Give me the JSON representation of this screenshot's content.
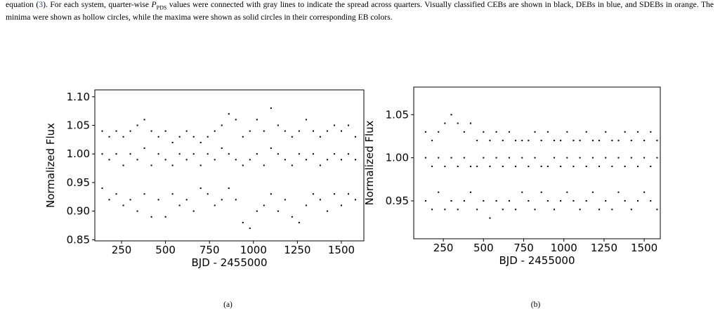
{
  "paragraph": {
    "lead": "equation (",
    "eq_ref": "3",
    "mid": "). For each system, quarter-wise ",
    "symbol": "P",
    "symbol_sub": "PDS",
    "rest": " values were connected with gray lines to indicate the spread across quarters. Visually classified CEBs are shown in black, DEBs in blue, and SDEBs in orange. The minima were shown as hollow circles, while the maxima were shown as solid circles in their corresponding EB colors."
  },
  "chart_data": [
    {
      "type": "scatter",
      "caption": "(a)",
      "xlabel": "BJD - 2455000",
      "ylabel": "Normalized Flux",
      "color": "#000000",
      "x": [
        140,
        180,
        220,
        260,
        300,
        340,
        380,
        420,
        460,
        500,
        540,
        580,
        620,
        660,
        700,
        740,
        780,
        820,
        860,
        900,
        940,
        980,
        1020,
        1060,
        1100,
        1140,
        1180,
        1220,
        1260,
        1300,
        1340,
        1380,
        1420,
        1460,
        1500,
        1540,
        1580,
        140,
        180,
        220,
        260,
        300,
        340,
        380,
        420,
        460,
        500,
        540,
        580,
        620,
        660,
        700,
        740,
        780,
        820,
        860,
        900,
        940,
        980,
        1020,
        1060,
        1100,
        1140,
        1180,
        1220,
        1260,
        1300,
        1340,
        1380,
        1420,
        1460,
        1500,
        1540,
        1580,
        140,
        180,
        220,
        260,
        300,
        340,
        380,
        420,
        460,
        500,
        540,
        580,
        620,
        660,
        700,
        740,
        780,
        820,
        860,
        900,
        940,
        980,
        1020,
        1060,
        1100,
        1140,
        1180,
        1220,
        1260,
        1300,
        1340,
        1380,
        1420,
        1460,
        1500,
        1540,
        1580
      ],
      "values": [
        1.04,
        1.03,
        1.04,
        1.03,
        1.04,
        1.05,
        1.06,
        1.04,
        1.03,
        1.04,
        1.02,
        1.03,
        1.04,
        1.03,
        1.02,
        1.03,
        1.04,
        1.05,
        1.07,
        1.06,
        1.03,
        1.04,
        1.06,
        1.04,
        1.08,
        1.05,
        1.04,
        1.03,
        1.04,
        1.06,
        1.04,
        1.03,
        1.04,
        1.05,
        1.04,
        1.05,
        1.03,
        1.0,
        0.99,
        1.0,
        0.98,
        1.0,
        0.99,
        1.01,
        0.98,
        1.0,
        0.99,
        0.98,
        1.0,
        0.99,
        1.0,
        0.98,
        1.0,
        0.99,
        1.01,
        1.0,
        0.99,
        0.98,
        0.99,
        1.0,
        0.98,
        1.01,
        1.0,
        0.99,
        0.98,
        1.0,
        0.99,
        1.0,
        0.98,
        0.99,
        1.0,
        0.99,
        1.0,
        0.99,
        0.94,
        0.92,
        0.93,
        0.91,
        0.92,
        0.9,
        0.93,
        0.89,
        0.92,
        0.89,
        0.93,
        0.91,
        0.92,
        0.9,
        0.94,
        0.93,
        0.91,
        0.92,
        0.94,
        0.92,
        0.88,
        0.87,
        0.9,
        0.91,
        0.93,
        0.9,
        0.92,
        0.89,
        0.88,
        0.91,
        0.93,
        0.92,
        0.9,
        0.93,
        0.91,
        0.93,
        0.92
      ],
      "xlim": [
        98,
        1628
      ],
      "ylim": [
        0.848,
        1.112
      ],
      "xticks": [
        250,
        500,
        750,
        1000,
        1250,
        1500
      ],
      "yticks": [
        0.85,
        {
          "value": 0.9,
          "label": "0.90"
        },
        0.95,
        {
          "value": 1,
          "label": "1.00"
        },
        1.05,
        {
          "value": 1.1,
          "label": "1.10"
        }
      ]
    },
    {
      "type": "scatter",
      "caption": "(b)",
      "xlabel": "BJD - 2455000",
      "ylabel": "Normalized Flux",
      "color": "#000000",
      "x": [
        140,
        180,
        220,
        260,
        300,
        340,
        380,
        420,
        460,
        500,
        540,
        580,
        620,
        660,
        700,
        740,
        780,
        820,
        860,
        900,
        940,
        980,
        1020,
        1060,
        1100,
        1140,
        1180,
        1220,
        1260,
        1300,
        1340,
        1380,
        1420,
        1460,
        1500,
        1540,
        1580,
        140,
        180,
        220,
        260,
        300,
        340,
        380,
        420,
        460,
        500,
        540,
        580,
        620,
        660,
        700,
        740,
        780,
        820,
        860,
        900,
        940,
        980,
        1020,
        1060,
        1100,
        1140,
        1180,
        1220,
        1260,
        1300,
        1340,
        1380,
        1420,
        1460,
        1500,
        1540,
        1580,
        140,
        180,
        220,
        260,
        300,
        340,
        380,
        420,
        460,
        500,
        540,
        580,
        620,
        660,
        700,
        740,
        780,
        820,
        860,
        900,
        940,
        980,
        1020,
        1060,
        1100,
        1140,
        1180,
        1220,
        1260,
        1300,
        1340,
        1380,
        1420,
        1460,
        1500,
        1540,
        1580
      ],
      "values": [
        1.03,
        1.02,
        1.03,
        1.04,
        1.05,
        1.04,
        1.03,
        1.04,
        1.02,
        1.03,
        1.02,
        1.03,
        1.02,
        1.03,
        1.02,
        1.02,
        1.02,
        1.03,
        1.02,
        1.03,
        1.02,
        1.02,
        1.03,
        1.02,
        1.02,
        1.03,
        1.02,
        1.02,
        1.03,
        1.02,
        1.02,
        1.03,
        1.02,
        1.03,
        1.02,
        1.03,
        1.02,
        1.0,
        0.99,
        1.0,
        0.99,
        1.0,
        0.99,
        1.0,
        0.99,
        0.99,
        1.0,
        0.99,
        1.0,
        0.99,
        1.0,
        0.99,
        1.0,
        0.99,
        1.0,
        0.99,
        0.99,
        1.0,
        0.99,
        1.0,
        0.99,
        1.0,
        0.99,
        1.0,
        0.99,
        1.0,
        0.99,
        1.0,
        0.99,
        1.0,
        0.99,
        1.0,
        0.99,
        1.0,
        0.95,
        0.94,
        0.96,
        0.94,
        0.95,
        0.94,
        0.95,
        0.96,
        0.94,
        0.95,
        0.93,
        0.95,
        0.94,
        0.95,
        0.94,
        0.96,
        0.95,
        0.94,
        0.96,
        0.95,
        0.94,
        0.95,
        0.96,
        0.95,
        0.94,
        0.95,
        0.96,
        0.94,
        0.95,
        0.94,
        0.96,
        0.95,
        0.94,
        0.95,
        0.96,
        0.95,
        0.94
      ],
      "xlim": [
        66,
        1600
      ],
      "ylim": [
        0.906,
        1.082
      ],
      "xticks": [
        250,
        500,
        750,
        1000,
        1250,
        1500
      ],
      "yticks": [
        0.95,
        {
          "value": 1,
          "label": "1.00"
        },
        1.05
      ]
    }
  ]
}
